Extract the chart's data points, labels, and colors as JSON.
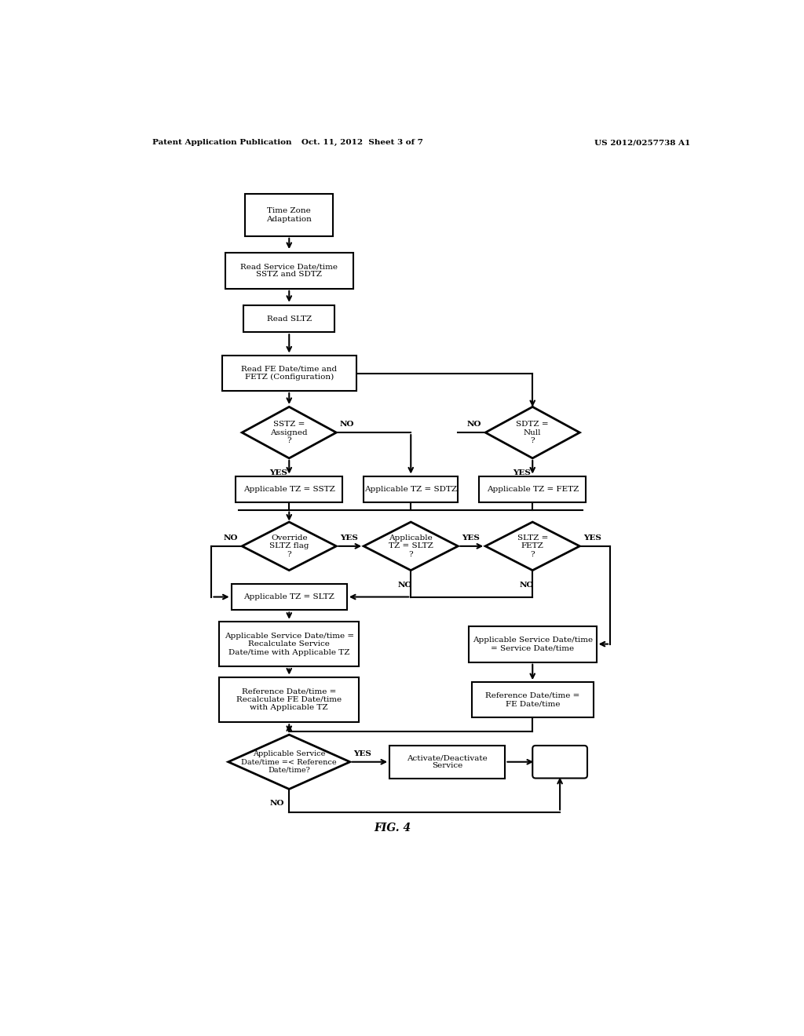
{
  "title_left": "Patent Application Publication",
  "title_center": "Oct. 11, 2012  Sheet 3 of 7",
  "title_right": "US 2012/0257738 A1",
  "fig_label": "FIG. 4",
  "bg_color": "#ffffff"
}
